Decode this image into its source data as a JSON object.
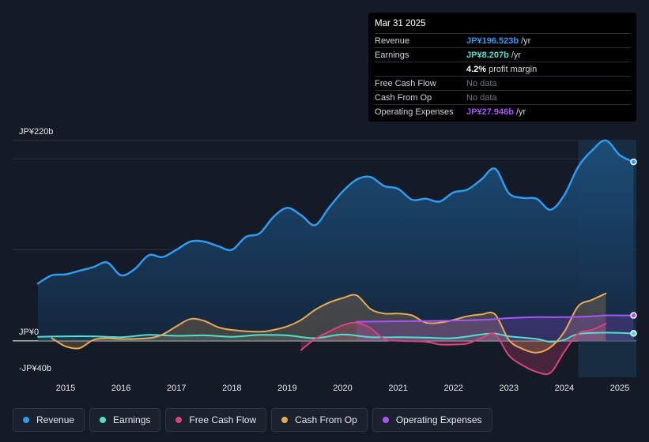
{
  "tooltip": {
    "date": "Mar 31 2025",
    "rows": [
      {
        "label": "Revenue",
        "value": "JP¥196.523b",
        "unit": "/yr",
        "color": "#2f9bef"
      },
      {
        "label": "Earnings",
        "value": "JP¥8.207b",
        "unit": "/yr",
        "color": "#4fe0cf"
      },
      {
        "label": "",
        "value": "4.2%",
        "unit": "profit margin",
        "color": "#ffffff"
      },
      {
        "label": "Free Cash Flow",
        "nodata": "No data"
      },
      {
        "label": "Cash From Op",
        "nodata": "No data"
      },
      {
        "label": "Operating Expenses",
        "value": "JP¥27.946b",
        "unit": "/yr",
        "color": "#a855f7"
      }
    ]
  },
  "chart_data": {
    "type": "area",
    "title": "",
    "y_labels": {
      "top": "JP¥220b",
      "zero": "JP¥0",
      "bottom": "-JP¥40b"
    },
    "ylim": [
      -40,
      220
    ],
    "xlim": [
      2014.5,
      2025.3
    ],
    "x_ticks": [
      "2015",
      "2016",
      "2017",
      "2018",
      "2019",
      "2020",
      "2021",
      "2022",
      "2023",
      "2024",
      "2025"
    ],
    "forecast_start": 2024.25,
    "series": [
      {
        "name": "Revenue",
        "color": "#2f9bef",
        "points": [
          [
            2014.5,
            63
          ],
          [
            2014.75,
            72
          ],
          [
            2015.0,
            73
          ],
          [
            2015.25,
            77
          ],
          [
            2015.5,
            81
          ],
          [
            2015.75,
            86
          ],
          [
            2016.0,
            72
          ],
          [
            2016.25,
            79
          ],
          [
            2016.5,
            94
          ],
          [
            2016.75,
            92
          ],
          [
            2017.0,
            100
          ],
          [
            2017.25,
            109
          ],
          [
            2017.5,
            109
          ],
          [
            2017.75,
            104
          ],
          [
            2018.0,
            100
          ],
          [
            2018.25,
            114
          ],
          [
            2018.5,
            118
          ],
          [
            2018.75,
            136
          ],
          [
            2019.0,
            146
          ],
          [
            2019.25,
            138
          ],
          [
            2019.5,
            127
          ],
          [
            2019.75,
            146
          ],
          [
            2020.0,
            164
          ],
          [
            2020.25,
            177
          ],
          [
            2020.5,
            180
          ],
          [
            2020.75,
            170
          ],
          [
            2021.0,
            167
          ],
          [
            2021.25,
            155
          ],
          [
            2021.5,
            156
          ],
          [
            2021.75,
            153
          ],
          [
            2022.0,
            163
          ],
          [
            2022.25,
            166
          ],
          [
            2022.5,
            177
          ],
          [
            2022.75,
            189
          ],
          [
            2023.0,
            162
          ],
          [
            2023.25,
            157
          ],
          [
            2023.5,
            156
          ],
          [
            2023.75,
            144
          ],
          [
            2024.0,
            160
          ],
          [
            2024.25,
            191
          ],
          [
            2024.5,
            209
          ],
          [
            2024.75,
            220
          ],
          [
            2025.0,
            204
          ],
          [
            2025.25,
            196.5
          ]
        ]
      },
      {
        "name": "Earnings",
        "color": "#4fe0cf",
        "points": [
          [
            2014.5,
            4.5
          ],
          [
            2015.0,
            5
          ],
          [
            2015.5,
            5
          ],
          [
            2016.0,
            4
          ],
          [
            2016.5,
            6.5
          ],
          [
            2017.0,
            5.5
          ],
          [
            2017.5,
            6
          ],
          [
            2018.0,
            4.5
          ],
          [
            2018.5,
            6.5
          ],
          [
            2019.0,
            6
          ],
          [
            2019.5,
            3
          ],
          [
            2020.0,
            7
          ],
          [
            2020.5,
            4
          ],
          [
            2021.0,
            4
          ],
          [
            2021.5,
            3.5
          ],
          [
            2022.0,
            3
          ],
          [
            2022.5,
            7
          ],
          [
            2022.75,
            8
          ],
          [
            2023.0,
            5
          ],
          [
            2023.5,
            2
          ],
          [
            2023.75,
            -1
          ],
          [
            2024.0,
            1
          ],
          [
            2024.25,
            7.5
          ],
          [
            2024.75,
            9
          ],
          [
            2025.25,
            8.2
          ]
        ]
      },
      {
        "name": "Free Cash Flow",
        "color": "#d9417f",
        "points": [
          [
            2019.25,
            -10
          ],
          [
            2019.5,
            2
          ],
          [
            2019.75,
            10
          ],
          [
            2020.0,
            17
          ],
          [
            2020.25,
            20
          ],
          [
            2020.5,
            14
          ],
          [
            2020.75,
            2
          ],
          [
            2021.0,
            0
          ],
          [
            2021.5,
            -1
          ],
          [
            2021.75,
            -4
          ],
          [
            2022.0,
            -4
          ],
          [
            2022.25,
            -3
          ],
          [
            2022.5,
            3
          ],
          [
            2022.75,
            7
          ],
          [
            2023.0,
            -16
          ],
          [
            2023.25,
            -27
          ],
          [
            2023.5,
            -34
          ],
          [
            2023.75,
            -35
          ],
          [
            2024.0,
            -12
          ],
          [
            2024.25,
            8
          ],
          [
            2024.5,
            12
          ],
          [
            2024.75,
            19
          ]
        ]
      },
      {
        "name": "Cash From Op",
        "color": "#e8a956",
        "points": [
          [
            2014.75,
            3
          ],
          [
            2015.0,
            -6
          ],
          [
            2015.25,
            -8
          ],
          [
            2015.5,
            1
          ],
          [
            2015.75,
            3
          ],
          [
            2016.0,
            2
          ],
          [
            2016.5,
            3
          ],
          [
            2016.75,
            7
          ],
          [
            2017.0,
            16
          ],
          [
            2017.25,
            24
          ],
          [
            2017.5,
            22
          ],
          [
            2017.75,
            15
          ],
          [
            2018.0,
            12
          ],
          [
            2018.5,
            10
          ],
          [
            2018.75,
            12
          ],
          [
            2019.0,
            16
          ],
          [
            2019.25,
            23
          ],
          [
            2019.5,
            34
          ],
          [
            2019.75,
            42
          ],
          [
            2020.0,
            47
          ],
          [
            2020.25,
            50
          ],
          [
            2020.5,
            35
          ],
          [
            2020.75,
            30
          ],
          [
            2021.0,
            30
          ],
          [
            2021.25,
            28
          ],
          [
            2021.5,
            20
          ],
          [
            2021.75,
            20
          ],
          [
            2022.0,
            23
          ],
          [
            2022.25,
            27
          ],
          [
            2022.5,
            29
          ],
          [
            2022.75,
            29
          ],
          [
            2023.0,
            1
          ],
          [
            2023.25,
            -9
          ],
          [
            2023.5,
            -13
          ],
          [
            2023.75,
            -7
          ],
          [
            2024.0,
            10
          ],
          [
            2024.25,
            38
          ],
          [
            2024.5,
            45
          ],
          [
            2024.75,
            52
          ]
        ]
      },
      {
        "name": "Operating Expenses",
        "color": "#a855f7",
        "points": [
          [
            2020.25,
            21
          ],
          [
            2021.0,
            21.5
          ],
          [
            2021.75,
            22
          ],
          [
            2022.5,
            23
          ],
          [
            2023.0,
            25
          ],
          [
            2023.5,
            26
          ],
          [
            2024.0,
            26
          ],
          [
            2024.5,
            27
          ],
          [
            2024.75,
            28
          ],
          [
            2025.25,
            27.9
          ]
        ]
      }
    ],
    "legend": [
      "Revenue",
      "Earnings",
      "Free Cash Flow",
      "Cash From Op",
      "Operating Expenses"
    ]
  },
  "legend_items": [
    {
      "label": "Revenue",
      "color": "#2f9bef"
    },
    {
      "label": "Earnings",
      "color": "#4fe0cf"
    },
    {
      "label": "Free Cash Flow",
      "color": "#d9417f"
    },
    {
      "label": "Cash From Op",
      "color": "#e8a956"
    },
    {
      "label": "Operating Expenses",
      "color": "#a855f7"
    }
  ]
}
